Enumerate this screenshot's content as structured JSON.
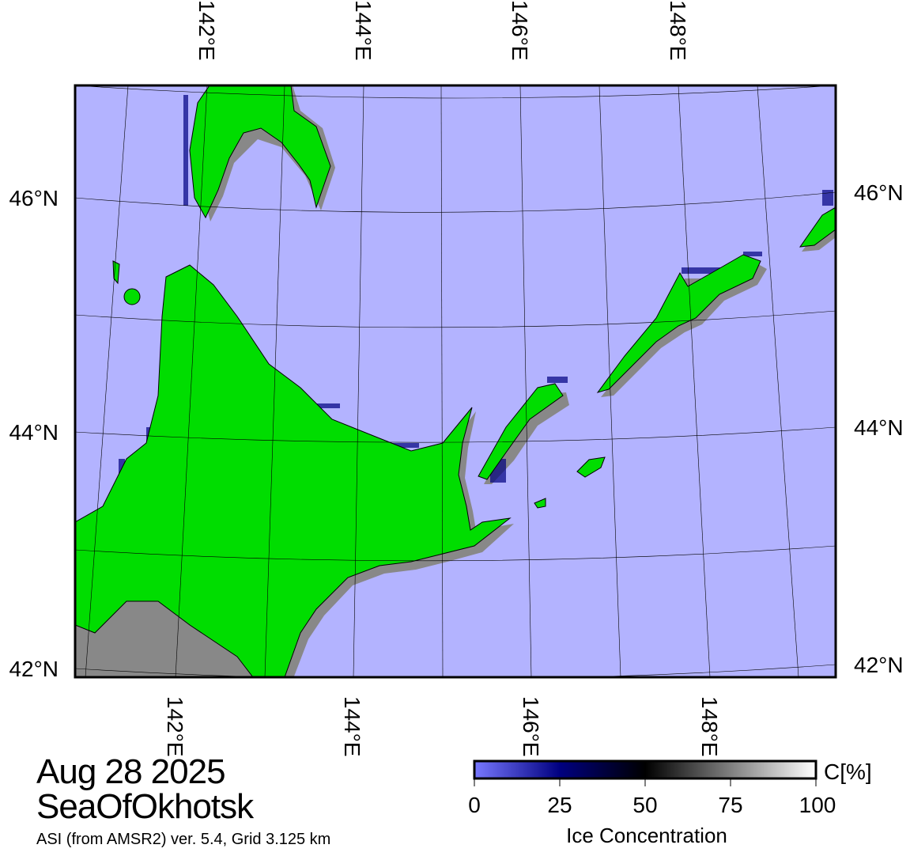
{
  "map": {
    "date": "Aug 28 2025",
    "region": "SeaOfOkhotsk",
    "source": "ASI (from AMSR2) ver. 5.4,  Grid 3.125 km",
    "top_lon_labels": [
      "142°E",
      "144°E",
      "146°E",
      "148°E"
    ],
    "bottom_lon_labels": [
      "142°E",
      "144°E",
      "146°E",
      "148°E"
    ],
    "left_lat_labels": [
      "46°N",
      "44°N",
      "42°N"
    ],
    "right_lat_labels": [
      "46°N",
      "44°N",
      "42°N"
    ],
    "colors": {
      "sea": "#b3b3ff",
      "land": "#00dd00",
      "coast_mask": "#888888"
    }
  },
  "colorbar": {
    "unit": "C[%]",
    "title": "Ice Concentration",
    "ticks": [
      "0",
      "25",
      "50",
      "75",
      "100"
    ],
    "range": [
      0,
      100
    ],
    "colors": [
      "#7878ff",
      "#000080",
      "#000000",
      "#ffffff"
    ]
  }
}
